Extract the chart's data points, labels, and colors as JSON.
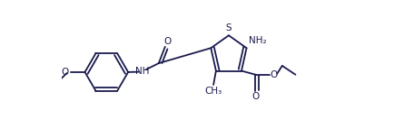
{
  "line_color": "#1a1a4e",
  "bg_color": "#ffffff",
  "lw": 1.3,
  "fig_width": 4.45,
  "fig_height": 1.43,
  "dpi": 100,
  "xlim": [
    -2.5,
    8.5
  ],
  "ylim": [
    -2.2,
    2.8
  ]
}
